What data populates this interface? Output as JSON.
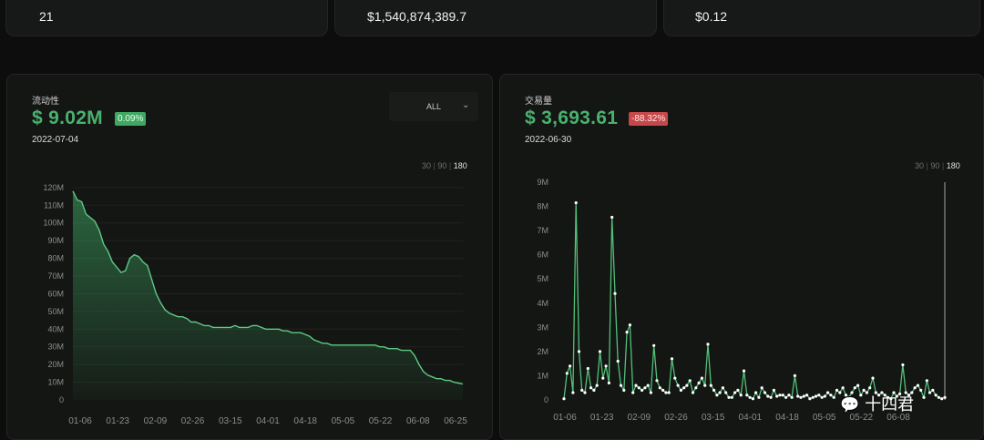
{
  "stats": [
    {
      "value": "21"
    },
    {
      "value": "$1,540,874,389.7"
    },
    {
      "value": "$0.12"
    }
  ],
  "liquidity": {
    "label": "流动性",
    "value": "$ 9.02M",
    "change": "0.09%",
    "date": "2022-07-04",
    "dropdown": "ALL",
    "ranges": [
      "30",
      "90",
      "180"
    ],
    "active_range": "180"
  },
  "volume": {
    "label": "交易量",
    "value": "$ 3,693.61",
    "change": "-88.32%",
    "date": "2022-06-30",
    "ranges": [
      "30",
      "90",
      "180"
    ],
    "active_range": "180"
  },
  "watermark": "十四君",
  "colors": {
    "green": "#49b16e",
    "red": "#c6484a",
    "bg": "#0c0d0c"
  },
  "chart_data": [
    {
      "type": "area",
      "yticks": [
        "0",
        "10M",
        "20M",
        "30M",
        "40M",
        "50M",
        "60M",
        "70M",
        "80M",
        "90M",
        "100M",
        "110M",
        "120M"
      ],
      "xticks": [
        "01-06",
        "01-23",
        "02-09",
        "02-26",
        "03-15",
        "04-01",
        "04-18",
        "05-05",
        "05-22",
        "06-08",
        "06-25"
      ],
      "ylim": [
        0,
        122
      ],
      "unit": "M",
      "x": [
        0,
        2,
        4,
        6,
        8,
        10,
        12,
        14,
        16,
        18,
        20,
        22,
        24,
        26,
        28,
        30,
        32,
        34,
        36,
        38,
        40,
        42,
        44,
        46,
        48,
        50,
        52,
        54,
        56,
        58,
        60,
        62,
        64,
        66,
        68,
        70,
        72,
        74,
        76,
        78,
        80,
        82,
        84,
        86,
        88,
        90,
        92,
        94,
        96,
        98,
        100,
        102,
        104,
        106,
        108,
        110,
        112,
        114,
        116,
        118,
        120,
        122,
        124,
        126,
        128,
        130,
        132,
        134,
        136,
        138,
        140,
        142,
        144,
        146,
        148,
        150,
        152,
        154,
        156,
        158,
        160,
        162,
        164,
        166,
        168,
        170,
        172,
        174,
        176,
        178
      ],
      "y": [
        118,
        113,
        112,
        105,
        103,
        101,
        96,
        88,
        84,
        78,
        75,
        72,
        73,
        80,
        82,
        81,
        78,
        76,
        68,
        60,
        55,
        51,
        49,
        48,
        47,
        47,
        46,
        44,
        44,
        43,
        42,
        42,
        41,
        41,
        41,
        41,
        41,
        42,
        41,
        41,
        41,
        42,
        42,
        41,
        40,
        40,
        40,
        40,
        39,
        39,
        38,
        38,
        38,
        37,
        36,
        34,
        33,
        32,
        32,
        31,
        31,
        31,
        31,
        31,
        31,
        31,
        31,
        31,
        31,
        31,
        30,
        30,
        29,
        29,
        29,
        28,
        28,
        28,
        25,
        20,
        16,
        14,
        13,
        12,
        12,
        11,
        11,
        10,
        9.5,
        9
      ]
    },
    {
      "type": "line",
      "yticks": [
        "0",
        "1M",
        "2M",
        "3M",
        "4M",
        "5M",
        "6M",
        "7M",
        "8M",
        "9M"
      ],
      "xticks": [
        "01-06",
        "01-23",
        "02-09",
        "02-26",
        "03-15",
        "04-01",
        "04-18",
        "05-05",
        "05-22",
        "06-08"
      ],
      "ylim": [
        0,
        9
      ],
      "unit": "M",
      "y": [
        0.05,
        1.1,
        1.4,
        0.3,
        8.15,
        2.0,
        0.4,
        0.3,
        1.3,
        0.5,
        0.4,
        0.6,
        2.0,
        0.9,
        1.4,
        0.7,
        7.55,
        4.4,
        1.6,
        0.6,
        0.4,
        2.8,
        3.1,
        0.3,
        0.6,
        0.5,
        0.4,
        0.5,
        0.6,
        0.3,
        2.25,
        0.8,
        0.5,
        0.4,
        0.3,
        0.3,
        1.7,
        0.9,
        0.6,
        0.4,
        0.5,
        0.6,
        0.8,
        0.3,
        0.5,
        0.7,
        0.9,
        0.6,
        2.3,
        0.6,
        0.4,
        0.2,
        0.3,
        0.5,
        0.3,
        0.1,
        0.1,
        0.3,
        0.4,
        0.2,
        1.2,
        0.2,
        0.1,
        0.05,
        0.3,
        0.1,
        0.5,
        0.3,
        0.15,
        0.1,
        0.4,
        0.15,
        0.2,
        0.2,
        0.1,
        0.2,
        0.1,
        1.0,
        0.15,
        0.1,
        0.15,
        0.2,
        0.05,
        0.1,
        0.15,
        0.2,
        0.1,
        0.15,
        0.3,
        0.2,
        0.1,
        0.4,
        0.3,
        0.5,
        0.2,
        0.1,
        0.3,
        0.5,
        0.6,
        0.2,
        0.4,
        0.3,
        0.5,
        0.9,
        0.3,
        0.2,
        0.3,
        0.2,
        0.1,
        0.05,
        0.3,
        0.15,
        0.25,
        1.45,
        0.3,
        0.2,
        0.3,
        0.5,
        0.6,
        0.4,
        0.1,
        0.8,
        0.3,
        0.4,
        0.2,
        0.1,
        0.05,
        0.1
      ]
    }
  ]
}
